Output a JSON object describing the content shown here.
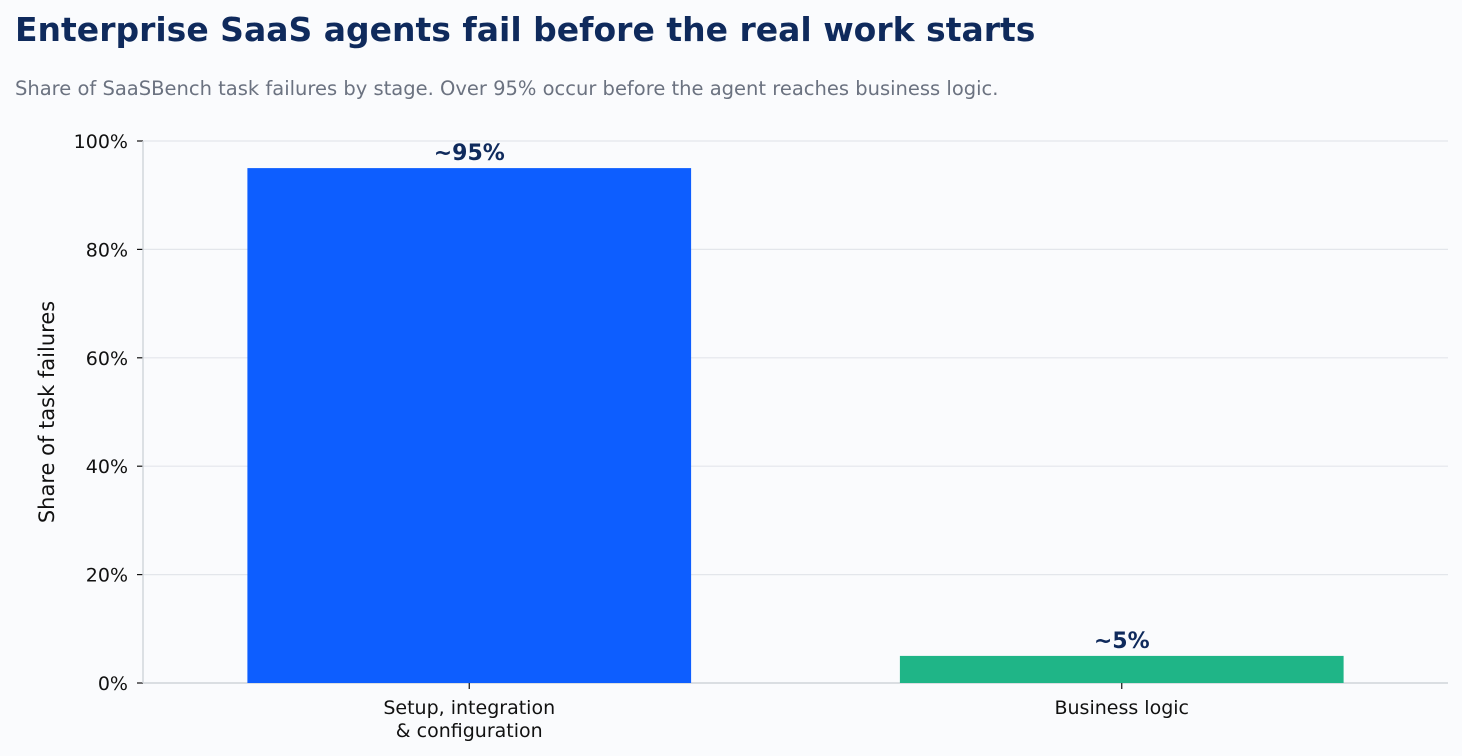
{
  "title": "Enterprise SaaS agents fail before the real work starts",
  "subtitle": "Share of SaaSBench task failures by stage. Over 95% occur before the agent reaches business logic.",
  "chart_data": {
    "type": "bar",
    "categories": [
      "Setup, integration\n& configuration",
      "Business logic"
    ],
    "values": [
      95,
      5
    ],
    "data_labels": [
      "~95%",
      "~5%"
    ],
    "colors": [
      "#0d5eff",
      "#1fb587"
    ],
    "title": "Enterprise SaaS agents fail before the real work starts",
    "xlabel": "",
    "ylabel": "Share of task failures",
    "ylim": [
      0,
      100
    ],
    "yticks": [
      0,
      20,
      40,
      60,
      80,
      100
    ],
    "ytick_labels": [
      "0%",
      "20%",
      "40%",
      "60%",
      "80%",
      "100%"
    ],
    "grid": true,
    "label_color": "#0f2a5c"
  }
}
